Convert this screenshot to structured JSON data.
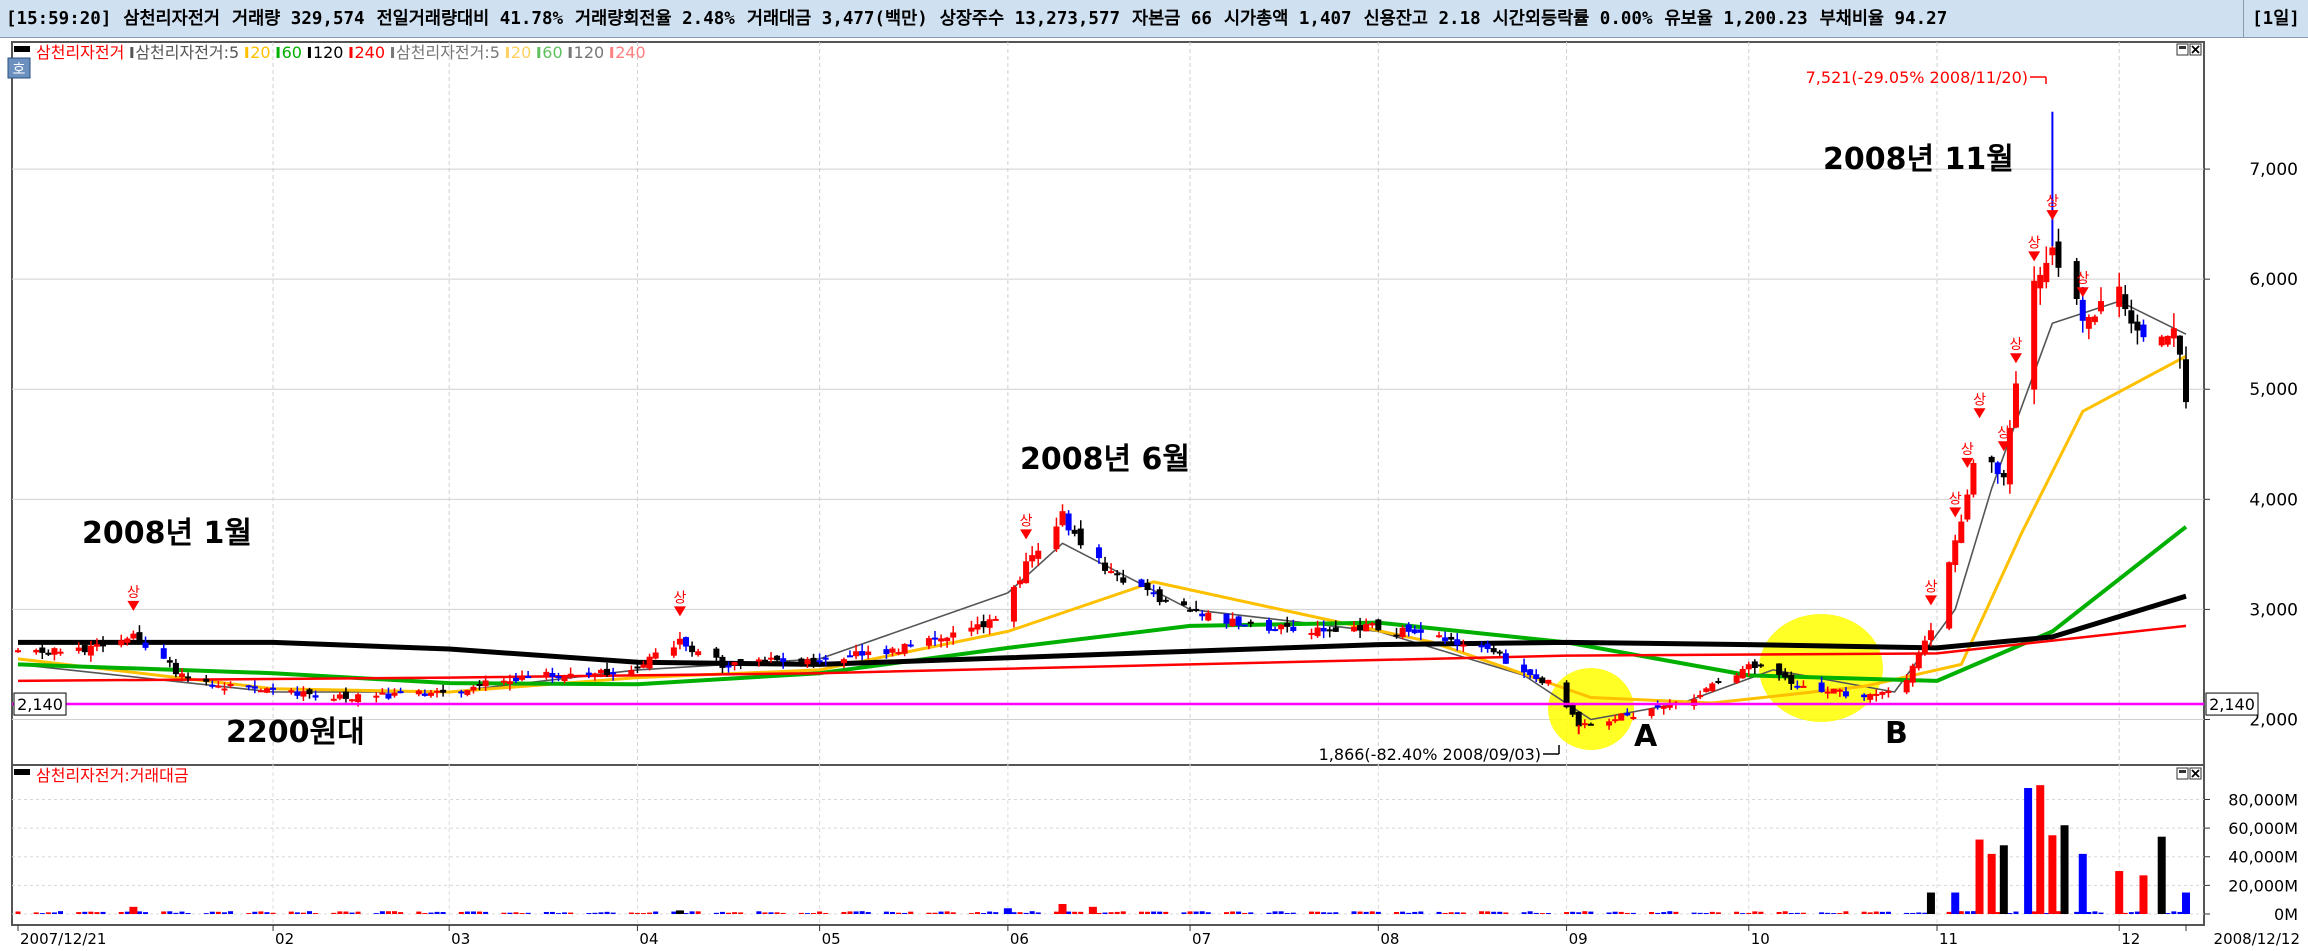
{
  "topbar": {
    "time": "[15:59:20]",
    "stock_name": "삼천리자전거",
    "metrics": [
      "거래량 329,574",
      "전일거래량대비 41.78%",
      "거래량회전율 2.48%",
      "거래대금 3,477(백만)",
      "상장주수 13,273,577",
      "자본금 66",
      "시가총액 1,407",
      "신용잔고 2.18",
      "시간외등락률 0.00%",
      "유보율 1,200.23",
      "부채비율 94.27"
    ],
    "period": "[1일]"
  },
  "legend": {
    "icon": "호",
    "price": [
      {
        "text": "삼천리자전거",
        "color": "#ff0000"
      },
      {
        "text": "삼천리자전거:5",
        "color": "#555555"
      },
      {
        "text": "20",
        "color": "#ffc000"
      },
      {
        "text": "60",
        "color": "#00b000"
      },
      {
        "text": "120",
        "color": "#000000"
      },
      {
        "text": "240",
        "color": "#ff0000"
      },
      {
        "text": "삼천리자전거:5",
        "color": "#777777"
      },
      {
        "text": "20",
        "color": "#ffd060"
      },
      {
        "text": "60",
        "color": "#60c060"
      },
      {
        "text": "120",
        "color": "#777777"
      },
      {
        "text": "240",
        "color": "#ff8080"
      }
    ],
    "volume": [
      {
        "text": "삼천리자전거:거래대금",
        "color": "#ff0000"
      }
    ]
  },
  "annotations": {
    "jan": "2008년 1월",
    "jun": "2008년 6월",
    "nov": "2008년 11월",
    "level": "2200원대",
    "a": "A",
    "b": "B",
    "high": "7,521(-29.05% 2008/11/20)",
    "low": "1,866(-82.40% 2008/09/03)",
    "limit_up": "상"
  },
  "chart_data": [
    {
      "type": "candlestick",
      "title": "삼천리자전거",
      "x_range": [
        "2007/12/21",
        "2008/12/12"
      ],
      "x_ticks": [
        "2007/12/21",
        "02",
        "03",
        "04",
        "05",
        "06",
        "07",
        "08",
        "09",
        "10",
        "11",
        "12",
        "2008/12/12"
      ],
      "y_ticks": [
        "2,000",
        "3,000",
        "4,000",
        "5,000",
        "6,000",
        "7,000"
      ],
      "ylim": [
        1650,
        8100
      ],
      "grid": true,
      "horizontal_line": {
        "value": 2140,
        "label": "2,140",
        "color": "#ff00ff"
      },
      "price_path": [
        [
          "2007/12/21",
          2600
        ],
        [
          "2008/01/02",
          2650
        ],
        [
          "2008/01/09",
          2750
        ],
        [
          "2008/01/18",
          2350
        ],
        [
          "2008/02/01",
          2250
        ],
        [
          "2008/02/15",
          2200
        ],
        [
          "2008/02/29",
          2250
        ],
        [
          "2008/03/14",
          2400
        ],
        [
          "2008/03/31",
          2450
        ],
        [
          "2008/04/08",
          2700
        ],
        [
          "2008/04/15",
          2500
        ],
        [
          "2008/04/30",
          2550
        ],
        [
          "2008/05/15",
          2650
        ],
        [
          "2008/05/30",
          2900
        ],
        [
          "2008/06/04",
          3400
        ],
        [
          "2008/06/10",
          3850
        ],
        [
          "2008/06/13",
          3550
        ],
        [
          "2008/06/20",
          3250
        ],
        [
          "2008/06/30",
          3000
        ],
        [
          "2008/07/10",
          2850
        ],
        [
          "2008/07/20",
          2800
        ],
        [
          "2008/07/30",
          2850
        ],
        [
          "2008/08/10",
          2750
        ],
        [
          "2008/08/20",
          2600
        ],
        [
          "2008/08/30",
          2300
        ],
        [
          "2008/09/03",
          1950
        ],
        [
          "2008/09/12",
          2050
        ],
        [
          "2008/09/22",
          2200
        ],
        [
          "2008/10/01",
          2500
        ],
        [
          "2008/10/10",
          2300
        ],
        [
          "2008/10/20",
          2200
        ],
        [
          "2008/10/27",
          2350
        ],
        [
          "2008/10/31",
          2800
        ],
        [
          "2008/11/04",
          3600
        ],
        [
          "2008/11/08",
          4500
        ],
        [
          "2008/11/12",
          4200
        ],
        [
          "2008/11/16",
          5800
        ],
        [
          "2008/11/20",
          6300
        ],
        [
          "2008/11/25",
          5600
        ],
        [
          "2008/12/01",
          5900
        ],
        [
          "2008/12/05",
          5400
        ],
        [
          "2008/12/10",
          5600
        ],
        [
          "2008/12/12",
          4900
        ]
      ],
      "extremes": [
        {
          "label": "7,521(-29.05% 2008/11/20)",
          "date": "2008/11/20",
          "value": 7521
        },
        {
          "label": "1,866(-82.40% 2008/09/03)",
          "date": "2008/09/03",
          "value": 1866
        }
      ],
      "moving_averages": [
        {
          "name": "5",
          "color": "#555555",
          "points": [
            [
              "2007/12/21",
              2500
            ],
            [
              "2008/02/01",
              2250
            ],
            [
              "2008/03/01",
              2250
            ],
            [
              "2008/04/01",
              2450
            ],
            [
              "2008/05/01",
              2550
            ],
            [
              "2008/06/01",
              3150
            ],
            [
              "2008/06/10",
              3600
            ],
            [
              "2008/07/01",
              3000
            ],
            [
              "2008/08/01",
              2800
            ],
            [
              "2008/08/25",
              2400
            ],
            [
              "2008/09/05",
              2000
            ],
            [
              "2008/09/20",
              2150
            ],
            [
              "2008/10/05",
              2450
            ],
            [
              "2008/10/25",
              2250
            ],
            [
              "2008/11/04",
              3000
            ],
            [
              "2008/11/10",
              4100
            ],
            [
              "2008/11/20",
              5600
            ],
            [
              "2008/12/01",
              5800
            ],
            [
              "2008/12/12",
              5500
            ]
          ]
        },
        {
          "name": "20",
          "color": "#ffc000",
          "points": [
            [
              "2007/12/21",
              2550
            ],
            [
              "2008/02/01",
              2280
            ],
            [
              "2008/03/01",
              2250
            ],
            [
              "2008/04/01",
              2380
            ],
            [
              "2008/05/01",
              2450
            ],
            [
              "2008/06/01",
              2800
            ],
            [
              "2008/06/25",
              3250
            ],
            [
              "2008/07/20",
              2950
            ],
            [
              "2008/08/10",
              2700
            ],
            [
              "2008/09/05",
              2200
            ],
            [
              "2008/09/25",
              2150
            ],
            [
              "2008/10/20",
              2300
            ],
            [
              "2008/11/05",
              2500
            ],
            [
              "2008/11/15",
              3700
            ],
            [
              "2008/11/25",
              4800
            ],
            [
              "2008/12/12",
              5300
            ]
          ]
        },
        {
          "name": "60",
          "color": "#00b000",
          "points": [
            [
              "2007/12/21",
              2500
            ],
            [
              "2008/02/01",
              2420
            ],
            [
              "2008/03/01",
              2330
            ],
            [
              "2008/04/01",
              2320
            ],
            [
              "2008/05/01",
              2420
            ],
            [
              "2008/06/01",
              2650
            ],
            [
              "2008/07/01",
              2850
            ],
            [
              "2008/08/01",
              2880
            ],
            [
              "2008/09/01",
              2700
            ],
            [
              "2008/10/01",
              2400
            ],
            [
              "2008/11/01",
              2350
            ],
            [
              "2008/11/20",
              2800
            ],
            [
              "2008/12/12",
              3750
            ]
          ]
        },
        {
          "name": "120",
          "color": "#000000",
          "points": [
            [
              "2007/12/21",
              2700
            ],
            [
              "2008/02/01",
              2700
            ],
            [
              "2008/03/01",
              2640
            ],
            [
              "2008/04/01",
              2520
            ],
            [
              "2008/05/01",
              2500
            ],
            [
              "2008/06/01",
              2560
            ],
            [
              "2008/07/01",
              2620
            ],
            [
              "2008/08/01",
              2680
            ],
            [
              "2008/09/01",
              2700
            ],
            [
              "2008/10/01",
              2680
            ],
            [
              "2008/11/01",
              2650
            ],
            [
              "2008/11/20",
              2750
            ],
            [
              "2008/12/12",
              3120
            ]
          ]
        },
        {
          "name": "240",
          "color": "#ff0000",
          "points": [
            [
              "2007/12/21",
              2350
            ],
            [
              "2008/03/01",
              2380
            ],
            [
              "2008/05/01",
              2420
            ],
            [
              "2008/07/01",
              2500
            ],
            [
              "2008/09/01",
              2580
            ],
            [
              "2008/11/01",
              2600
            ],
            [
              "2008/12/12",
              2850
            ]
          ]
        }
      ]
    },
    {
      "type": "bar",
      "title": "삼천리자전거:거래대금",
      "unit": "M",
      "y_ticks": [
        "0M",
        "20,000M",
        "40,000M",
        "60,000M",
        "80,000M"
      ],
      "ylim": [
        0,
        95000
      ],
      "bars": [
        [
          "2008/01/09",
          5000
        ],
        [
          "2008/04/08",
          2500
        ],
        [
          "2008/06/01",
          4000
        ],
        [
          "2008/06/10",
          7000
        ],
        [
          "2008/06/15",
          5000
        ],
        [
          "2008/10/31",
          15000
        ],
        [
          "2008/11/04",
          15000
        ],
        [
          "2008/11/08",
          52000
        ],
        [
          "2008/11/10",
          42000
        ],
        [
          "2008/11/12",
          48000
        ],
        [
          "2008/11/16",
          88000
        ],
        [
          "2008/11/18",
          90000
        ],
        [
          "2008/11/20",
          55000
        ],
        [
          "2008/11/22",
          62000
        ],
        [
          "2008/11/25",
          42000
        ],
        [
          "2008/12/01",
          30000
        ],
        [
          "2008/12/05",
          27000
        ],
        [
          "2008/12/08",
          54000
        ],
        [
          "2008/12/12",
          15000
        ]
      ]
    }
  ]
}
